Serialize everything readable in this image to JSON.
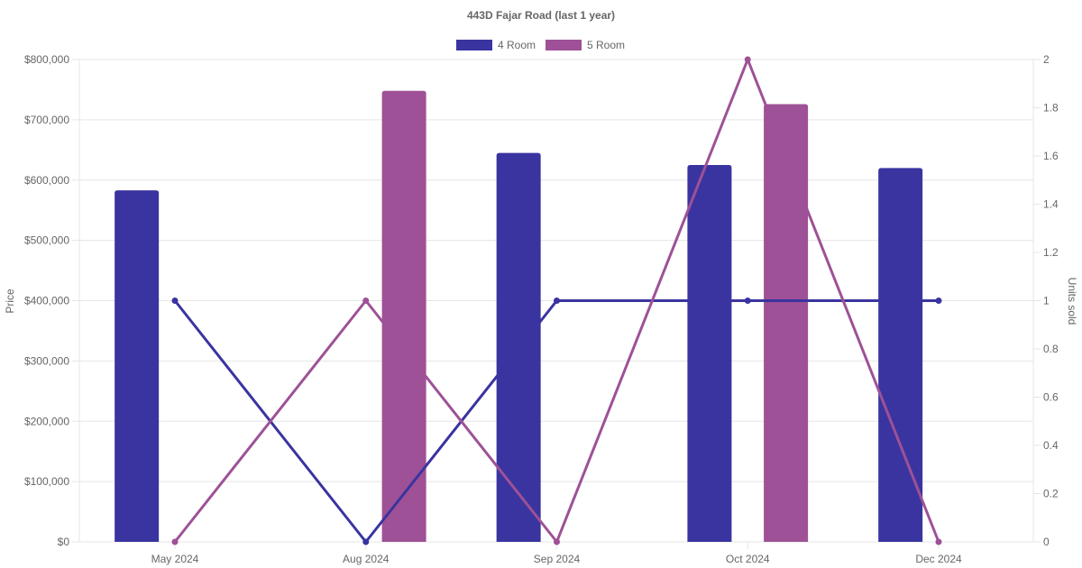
{
  "chart_data": {
    "type": "bar",
    "title": "443D Fajar Road (last 1 year)",
    "categories": [
      "May 2024",
      "Aug 2024",
      "Sep 2024",
      "Oct 2024",
      "Dec 2024"
    ],
    "legend_position": "top-center",
    "grid": true,
    "y_left": {
      "label": "Price",
      "range": [
        0,
        800000
      ],
      "ticks": [
        "$0",
        "$100,000",
        "$200,000",
        "$300,000",
        "$400,000",
        "$500,000",
        "$600,000",
        "$700,000",
        "$800,000"
      ]
    },
    "y_right": {
      "label": "Units sold",
      "range": [
        0,
        2
      ],
      "ticks": [
        "0",
        "0.2",
        "0.4",
        "0.6",
        "0.8",
        "1",
        "1.2",
        "1.4",
        "1.6",
        "1.8",
        "2"
      ]
    },
    "series": [
      {
        "name": "4 Room",
        "color": "#3a34a0",
        "price": [
          583000,
          null,
          645000,
          625000,
          620000
        ],
        "units_sold": [
          1,
          0,
          1,
          1,
          1
        ]
      },
      {
        "name": "5 Room",
        "color": "#9e5196",
        "price": [
          null,
          748000,
          null,
          726000,
          null
        ],
        "units_sold": [
          0,
          1,
          0,
          2,
          0
        ]
      }
    ]
  }
}
